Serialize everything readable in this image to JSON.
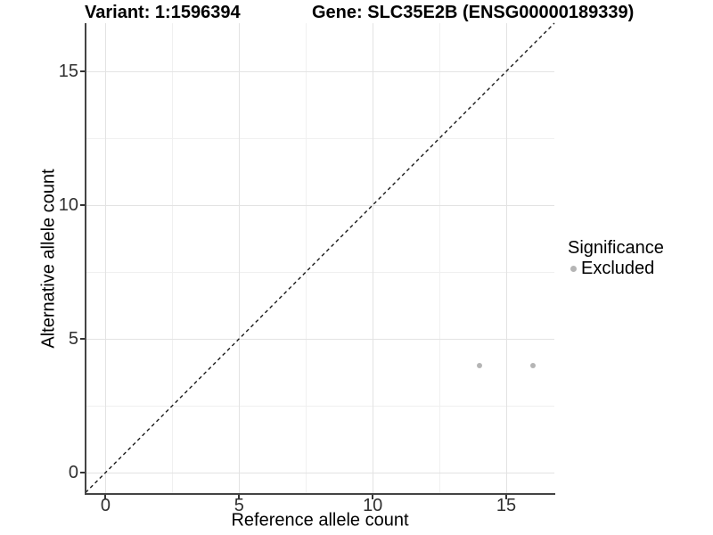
{
  "titles": {
    "variant": "Variant: 1:1596394",
    "gene": "Gene: SLC35E2B (ENSG00000189339)"
  },
  "chart_data": {
    "type": "scatter",
    "title": "Variant: 1:1596394 / Gene: SLC35E2B (ENSG00000189339)",
    "xlabel": "Reference allele count",
    "ylabel": "Alternative allele count",
    "xlim": [
      -0.75,
      16.8
    ],
    "ylim": [
      -0.77,
      16.8
    ],
    "x_major_ticks": [
      0,
      5,
      10,
      15
    ],
    "x_minor_ticks": [
      2.5,
      7.5,
      12.5
    ],
    "y_major_ticks": [
      0,
      5,
      10,
      15
    ],
    "y_minor_ticks": [
      2.5,
      7.5,
      12.5
    ],
    "grid": true,
    "series": [
      {
        "name": "Excluded",
        "color": "#b5b5b5",
        "points": [
          {
            "x": 14,
            "y": 4
          },
          {
            "x": 16,
            "y": 4
          }
        ]
      }
    ],
    "reference_line": {
      "type": "identity",
      "slope": 1,
      "intercept": 0,
      "style": "dashed",
      "color": "#1a1a1a"
    },
    "legend": {
      "title": "Significance",
      "position": "right",
      "items": [
        {
          "label": "Excluded",
          "color": "#b5b5b5"
        }
      ]
    }
  },
  "colors": {
    "background": "#ffffff",
    "grid_major": "#e3e3e3",
    "grid_minor": "#f0f0f0",
    "axis_line": "#444444",
    "tick_text": "#303030",
    "point": "#b5b5b5"
  }
}
